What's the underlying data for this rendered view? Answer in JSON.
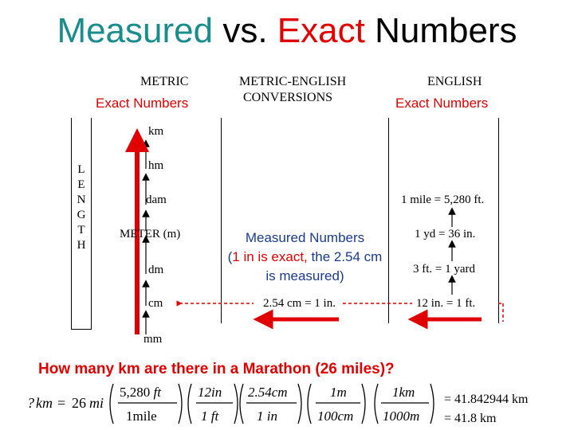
{
  "title": {
    "part1": "Measured",
    "part2": " vs. ",
    "part3": "Exact",
    "part4": " Numbers"
  },
  "headers": {
    "metric": "METRIC",
    "metric_exact": "Exact Numbers",
    "conversions_line1": "METRIC-ENGLISH",
    "conversions_line2": "CONVERSIONS",
    "english": "ENGLISH",
    "english_exact": "Exact Numbers"
  },
  "length_letters": [
    "L",
    "E",
    "N",
    "G",
    "T",
    "H"
  ],
  "metric_units": [
    "km",
    "hm",
    "dam",
    "METER (m)",
    "dm",
    "cm",
    "mm"
  ],
  "english_rules": [
    "1 mile = 5,280 ft.",
    "1 yd = 36 in.",
    "3 ft. = 1 yard",
    "12 in. = 1 ft."
  ],
  "measured": {
    "heading": "Measured Numbers",
    "paren_open": "(",
    "exact_part": "1 in is exact,",
    "measured_part": " the 2.54 cm is measured",
    "paren_close": ")"
  },
  "conversion_rule": "2.54 cm = 1 in.",
  "question": "How many km are there in a Marathon (26 miles)?",
  "equation": {
    "lhs_q": "?",
    "lhs_km": "km",
    "eq": "=",
    "lhs_26": "26",
    "lhs_mi": "mi",
    "f1_num": "5,280 ft",
    "f1_den": "1mile",
    "f2_num": "12in",
    "f2_den": "1 ft",
    "f3_num": "2.54cm",
    "f3_den": "1 in",
    "f4_num": "1m",
    "f4_den": "100cm",
    "f5_num": "1km",
    "f5_den": "1000m",
    "result1": "= 41.842944 km",
    "result2": "= 41.8  km"
  },
  "colors": {
    "teal": "#1a8c8c",
    "red": "#e00000",
    "blue": "#1a3a8c"
  }
}
